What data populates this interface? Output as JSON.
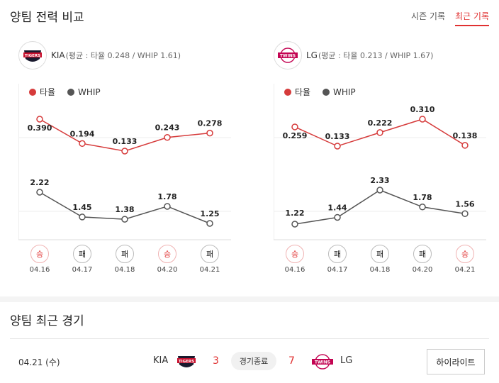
{
  "header": {
    "title": "양팀 전력 비교",
    "tabs": [
      {
        "label": "시즌 기록",
        "active": false
      },
      {
        "label": "최근 기록",
        "active": true
      }
    ]
  },
  "teams": [
    {
      "name": "KIA",
      "stats": "(평균 : 타율 0.248 / WHIP 1.61)",
      "logo_text": "TIGERS"
    },
    {
      "name": "LG",
      "stats": "(평균 : 타율 0.213 / WHIP 1.67)",
      "logo_text": "TWINS"
    }
  ],
  "legend": {
    "avg": "타율",
    "whip": "WHIP"
  },
  "colors": {
    "avg": "#d63b3b",
    "whip": "#555555",
    "win": "#e03131"
  },
  "chart_data": [
    {
      "type": "line",
      "team": "KIA",
      "categories": [
        "04.16",
        "04.17",
        "04.18",
        "04.20",
        "04.21"
      ],
      "series": [
        {
          "name": "타율",
          "values": [
            "0.390",
            "0.194",
            "0.133",
            "0.243",
            "0.278"
          ],
          "plot": [
            0.39,
            0.194,
            0.133,
            0.243,
            0.278
          ]
        },
        {
          "name": "WHIP",
          "values": [
            "2.22",
            "1.45",
            "1.38",
            "1.78",
            "1.25"
          ],
          "plot": [
            2.22,
            1.45,
            1.38,
            1.78,
            1.25
          ]
        }
      ],
      "results": [
        "승",
        "패",
        "패",
        "승",
        "패"
      ]
    },
    {
      "type": "line",
      "team": "LG",
      "categories": [
        "04.16",
        "04.17",
        "04.18",
        "04.20",
        "04.21"
      ],
      "series": [
        {
          "name": "타율",
          "values": [
            "0.259",
            "0.133",
            "0.222",
            "0.310",
            "0.138"
          ],
          "plot": [
            0.259,
            0.133,
            0.222,
            0.31,
            0.138
          ]
        },
        {
          "name": "WHIP",
          "values": [
            "1.22",
            "1.44",
            "2.33",
            "1.78",
            "1.56"
          ],
          "plot": [
            1.22,
            1.44,
            2.33,
            1.78,
            1.56
          ]
        }
      ],
      "results": [
        "승",
        "패",
        "패",
        "패",
        "승"
      ]
    }
  ],
  "recent": {
    "title": "양팀 최근 경기",
    "game": {
      "date": "04.21 (수)",
      "away_team": "KIA",
      "away_score": "3",
      "status": "경기종료",
      "home_score": "7",
      "home_team": "LG",
      "highlight_label": "하이라이트"
    }
  }
}
